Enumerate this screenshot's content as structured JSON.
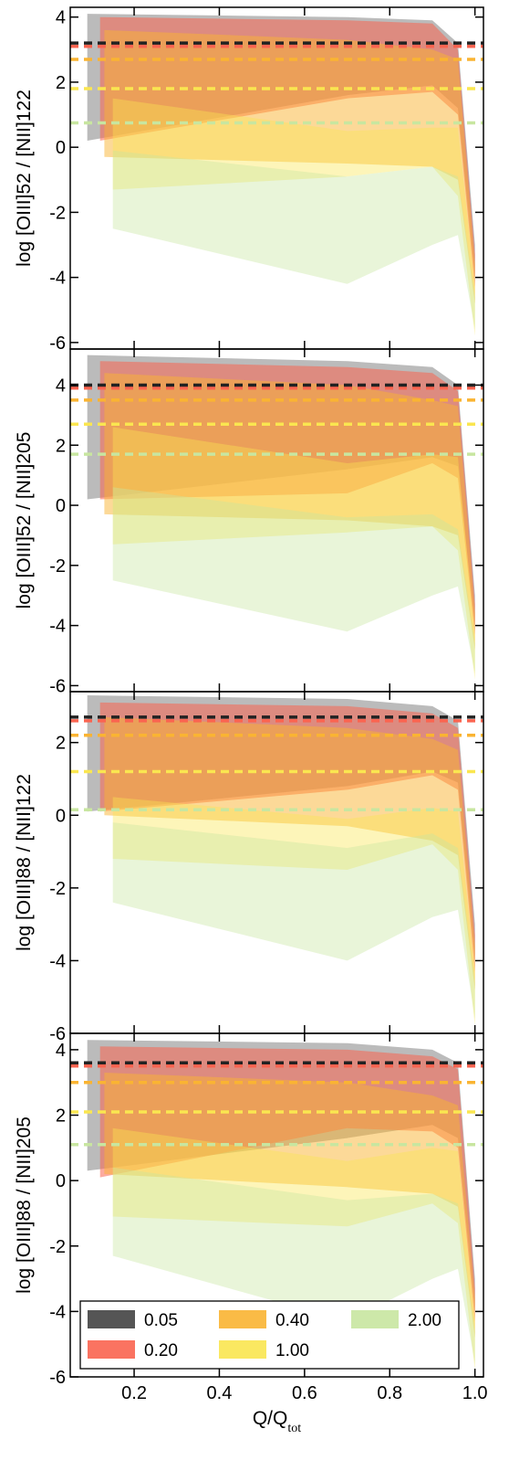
{
  "chart_data": [
    {
      "type": "area",
      "ylabel": "log [OIII]52 / [NII]122",
      "yticks": [
        4,
        2,
        0,
        -2,
        -4,
        -6
      ],
      "ylim": [
        -6.2,
        4.3
      ],
      "xlim": [
        0.05,
        1.02
      ],
      "reference_lines": [
        {
          "metallicity": "0.05",
          "y": 3.2
        },
        {
          "metallicity": "0.20",
          "y": 3.1
        },
        {
          "metallicity": "0.40",
          "y": 2.7
        },
        {
          "metallicity": "1.00",
          "y": 1.8
        },
        {
          "metallicity": "2.00",
          "y": 0.75
        }
      ],
      "bands": [
        {
          "metallicity": "0.05",
          "x": [
            0.09,
            0.7,
            0.9,
            0.96,
            1.0
          ],
          "upper": [
            4.1,
            4.0,
            3.9,
            3.2,
            -3.0
          ],
          "lower": [
            0.2,
            1.6,
            1.9,
            1.2,
            -4.0
          ]
        },
        {
          "metallicity": "0.20",
          "x": [
            0.12,
            0.7,
            0.9,
            0.96,
            1.0
          ],
          "upper": [
            4.0,
            3.9,
            3.8,
            3.0,
            -3.3
          ],
          "lower": [
            0.2,
            1.5,
            1.7,
            1.0,
            -4.3
          ]
        },
        {
          "metallicity": "0.40",
          "x": [
            0.13,
            0.7,
            0.9,
            0.96,
            1.0
          ],
          "upper": [
            3.6,
            3.3,
            3.0,
            2.7,
            -3.6
          ],
          "lower": [
            -0.3,
            -0.5,
            -0.6,
            -1.0,
            -4.8
          ]
        },
        {
          "metallicity": "1.00",
          "x": [
            0.15,
            0.7,
            0.9,
            0.96,
            1.0
          ],
          "upper": [
            1.5,
            0.5,
            0.6,
            0.6,
            -4.3
          ],
          "lower": [
            -1.3,
            -0.9,
            -0.6,
            -1.5,
            -5.8
          ]
        },
        {
          "metallicity": "2.00",
          "x": [
            0.15,
            0.7,
            0.9,
            0.96,
            1.0
          ],
          "upper": [
            -0.1,
            -0.9,
            -0.6,
            -0.9,
            -4.6
          ],
          "lower": [
            -2.5,
            -4.2,
            -3.0,
            -2.7,
            -5.6
          ]
        }
      ]
    },
    {
      "type": "area",
      "ylabel": "log [OIII]52 / [NII]205",
      "yticks": [
        4,
        2,
        0,
        -2,
        -4,
        -6
      ],
      "ylim": [
        -6.2,
        5.2
      ],
      "xlim": [
        0.05,
        1.02
      ],
      "reference_lines": [
        {
          "metallicity": "0.05",
          "y": 4.0
        },
        {
          "metallicity": "0.20",
          "y": 3.9
        },
        {
          "metallicity": "0.40",
          "y": 3.5
        },
        {
          "metallicity": "1.00",
          "y": 2.7
        },
        {
          "metallicity": "2.00",
          "y": 1.7
        }
      ],
      "bands": [
        {
          "metallicity": "0.05",
          "x": [
            0.09,
            0.7,
            0.9,
            0.96,
            1.0
          ],
          "upper": [
            5.0,
            4.8,
            4.6,
            4.0,
            -3.0
          ],
          "lower": [
            0.2,
            1.2,
            1.6,
            1.3,
            -4.0
          ]
        },
        {
          "metallicity": "0.20",
          "x": [
            0.12,
            0.7,
            0.9,
            0.96,
            1.0
          ],
          "upper": [
            4.8,
            4.6,
            4.4,
            3.8,
            -3.3
          ],
          "lower": [
            0.2,
            0.4,
            1.4,
            0.9,
            -4.3
          ]
        },
        {
          "metallicity": "0.40",
          "x": [
            0.13,
            0.7,
            0.9,
            0.96,
            1.0
          ],
          "upper": [
            4.4,
            4.0,
            3.5,
            3.3,
            -3.6
          ],
          "lower": [
            -0.3,
            -0.5,
            -0.7,
            -1.0,
            -4.8
          ]
        },
        {
          "metallicity": "1.00",
          "x": [
            0.15,
            0.7,
            0.9,
            0.96,
            1.0
          ],
          "upper": [
            2.6,
            1.4,
            1.7,
            1.6,
            -4.3
          ],
          "lower": [
            -1.3,
            -0.9,
            -0.7,
            -1.5,
            -5.8
          ]
        },
        {
          "metallicity": "2.00",
          "x": [
            0.15,
            0.7,
            0.9,
            0.96,
            1.0
          ],
          "upper": [
            0.6,
            -0.4,
            -0.3,
            -0.8,
            -4.6
          ],
          "lower": [
            -2.5,
            -4.2,
            -3.0,
            -2.7,
            -5.6
          ]
        }
      ]
    },
    {
      "type": "area",
      "ylabel": "log [OIII]88 / [NII]122",
      "yticks": [
        2,
        0,
        -2,
        -4,
        -6
      ],
      "ylim": [
        -6.0,
        3.4
      ],
      "xlim": [
        0.05,
        1.02
      ],
      "reference_lines": [
        {
          "metallicity": "0.05",
          "y": 2.7
        },
        {
          "metallicity": "0.20",
          "y": 2.6
        },
        {
          "metallicity": "0.40",
          "y": 2.2
        },
        {
          "metallicity": "1.00",
          "y": 1.2
        },
        {
          "metallicity": "2.00",
          "y": 0.15
        }
      ],
      "bands": [
        {
          "metallicity": "0.05",
          "x": [
            0.09,
            0.7,
            0.9,
            0.96,
            1.0
          ],
          "upper": [
            3.3,
            3.2,
            3.0,
            2.6,
            -3.0
          ],
          "lower": [
            0.1,
            0.8,
            1.2,
            0.9,
            -4.0
          ]
        },
        {
          "metallicity": "0.20",
          "x": [
            0.12,
            0.7,
            0.9,
            0.96,
            1.0
          ],
          "upper": [
            3.1,
            3.0,
            2.8,
            2.4,
            -3.3
          ],
          "lower": [
            0.1,
            0.7,
            1.1,
            0.7,
            -4.3
          ]
        },
        {
          "metallicity": "0.40",
          "x": [
            0.13,
            0.7,
            0.9,
            0.96,
            1.0
          ],
          "upper": [
            2.7,
            2.4,
            2.1,
            1.8,
            -3.6
          ],
          "lower": [
            0.0,
            -0.3,
            -0.7,
            -1.1,
            -4.8
          ]
        },
        {
          "metallicity": "1.00",
          "x": [
            0.15,
            0.7,
            0.9,
            0.96,
            1.0
          ],
          "upper": [
            0.5,
            -0.1,
            0.2,
            0.1,
            -4.3
          ],
          "lower": [
            -1.2,
            -1.5,
            -0.8,
            -1.5,
            -5.8
          ]
        },
        {
          "metallicity": "2.00",
          "x": [
            0.15,
            0.7,
            0.9,
            0.96,
            1.0
          ],
          "upper": [
            -0.2,
            -0.9,
            -0.5,
            -0.9,
            -4.6
          ],
          "lower": [
            -2.4,
            -4.0,
            -2.8,
            -2.6,
            -5.6
          ]
        }
      ]
    },
    {
      "type": "area",
      "ylabel": "log [OIII]88 / [NII]205",
      "yticks": [
        4,
        2,
        0,
        -2,
        -4,
        -6
      ],
      "ylim": [
        -6.0,
        4.5
      ],
      "xlim": [
        0.05,
        1.02
      ],
      "legend": {
        "position": "lower-left",
        "entries": [
          "0.05",
          "0.20",
          "0.40",
          "1.00",
          "2.00"
        ]
      },
      "reference_lines": [
        {
          "metallicity": "0.05",
          "y": 3.6
        },
        {
          "metallicity": "0.20",
          "y": 3.5
        },
        {
          "metallicity": "0.40",
          "y": 3.0
        },
        {
          "metallicity": "1.00",
          "y": 2.1
        },
        {
          "metallicity": "2.00",
          "y": 1.1
        }
      ],
      "bands": [
        {
          "metallicity": "0.05",
          "x": [
            0.09,
            0.7,
            0.9,
            0.96,
            1.0
          ],
          "upper": [
            4.3,
            4.2,
            4.0,
            3.6,
            -3.0
          ],
          "lower": [
            0.3,
            1.3,
            1.7,
            1.3,
            -4.0
          ]
        },
        {
          "metallicity": "0.20",
          "x": [
            0.12,
            0.7,
            0.9,
            0.96,
            1.0
          ],
          "upper": [
            4.1,
            4.0,
            3.8,
            3.4,
            -3.3
          ],
          "lower": [
            0.1,
            1.6,
            1.5,
            1.0,
            -4.3
          ]
        },
        {
          "metallicity": "0.40",
          "x": [
            0.13,
            0.7,
            0.9,
            0.96,
            1.0
          ],
          "upper": [
            3.3,
            3.0,
            2.6,
            2.3,
            -3.6
          ],
          "lower": [
            0.2,
            -0.2,
            -0.4,
            -0.8,
            -4.8
          ]
        },
        {
          "metallicity": "1.00",
          "x": [
            0.15,
            0.7,
            0.9,
            0.96,
            1.0
          ],
          "upper": [
            1.6,
            0.6,
            1.0,
            0.9,
            -4.3
          ],
          "lower": [
            -1.1,
            -1.4,
            -0.7,
            -1.3,
            -5.8
          ]
        },
        {
          "metallicity": "2.00",
          "x": [
            0.15,
            0.7,
            0.9,
            0.96,
            1.0
          ],
          "upper": [
            0.4,
            -0.6,
            -0.4,
            -0.7,
            -4.6
          ],
          "lower": [
            -2.3,
            -4.3,
            -3.0,
            -2.7,
            -5.6
          ]
        }
      ]
    }
  ],
  "xaxis": {
    "label": "Q/Q",
    "label_subscript": "tot",
    "ticks": [
      0.2,
      0.4,
      0.6,
      0.8,
      1.0
    ],
    "tick_labels": [
      "0.2",
      "0.4",
      "0.6",
      "0.8",
      "1.0"
    ]
  },
  "colors": {
    "0.05": "#555555",
    "0.20": "#fa6450",
    "0.40": "#fab432",
    "1.00": "#fae650",
    "2.00": "#c8e6a0"
  }
}
